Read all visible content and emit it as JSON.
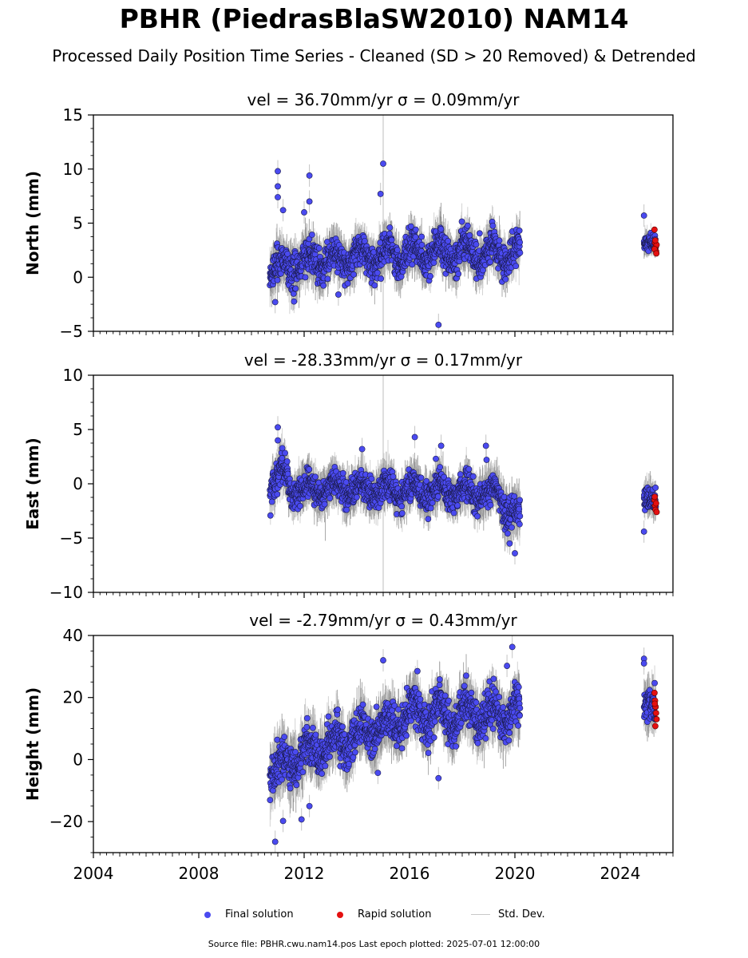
{
  "page": {
    "title": "PBHR (PiedrasBlaSW2010) NAM14",
    "subtitle": "Processed Daily Position Time Series - Cleaned (SD > 20 Removed) & Detrended",
    "source": "Source file: PBHR.cwu.nam14.pos  Last epoch plotted: 2025-07-01 12:00:00"
  },
  "legend": {
    "final_label": "Final solution",
    "rapid_label": "Rapid solution",
    "std_label": "Std. Dev."
  },
  "colors": {
    "final": "#4a4af0",
    "rapid": "#e41010",
    "std": "#b4b4b4",
    "outline": "#1a1a4a"
  },
  "chart_data": [
    {
      "type": "scatter",
      "title": "vel = 36.70mm/yr   σ = 0.09mm/yr",
      "ylabel": "North (mm)",
      "xlim": [
        2004,
        2026
      ],
      "ylim": [
        -5,
        15
      ],
      "yticks": [
        -5,
        0,
        5,
        10,
        15
      ],
      "xticks": [
        2004,
        2008,
        2012,
        2016,
        2020,
        2024
      ],
      "show_xtick_labels": false,
      "final_segments": [
        {
          "x_start": 2010.7,
          "x_end": 2013.0,
          "y_start": 0.8,
          "y_end": 1.6,
          "spread": 1.4,
          "amp": 0.8
        },
        {
          "x_start": 2013.0,
          "x_end": 2016.5,
          "y_start": 1.6,
          "y_end": 2.3,
          "spread": 1.3,
          "amp": 0.8
        },
        {
          "x_start": 2016.5,
          "x_end": 2020.2,
          "y_start": 2.3,
          "y_end": 2.2,
          "spread": 1.3,
          "amp": 0.9
        },
        {
          "x_start": 2024.9,
          "x_end": 2025.35,
          "y_start": 3.0,
          "y_end": 3.0,
          "spread": 0.7,
          "amp": 0.2
        }
      ],
      "final_outliers": [
        {
          "x": 2011.0,
          "y": 9.8
        },
        {
          "x": 2011.0,
          "y": 8.4
        },
        {
          "x": 2011.0,
          "y": 7.4
        },
        {
          "x": 2012.2,
          "y": 9.4
        },
        {
          "x": 2012.2,
          "y": 7.0
        },
        {
          "x": 2015.0,
          "y": 10.5
        },
        {
          "x": 2014.9,
          "y": 7.7
        },
        {
          "x": 2017.1,
          "y": -4.4
        },
        {
          "x": 2012.0,
          "y": 6.0
        },
        {
          "x": 2011.2,
          "y": 6.2
        },
        {
          "x": 2010.9,
          "y": -2.3
        },
        {
          "x": 2013.3,
          "y": -1.6
        },
        {
          "x": 2024.9,
          "y": 5.7
        }
      ],
      "rapid_points": [
        {
          "x": 2025.3,
          "y": 4.4
        },
        {
          "x": 2025.32,
          "y": 3.2
        },
        {
          "x": 2025.34,
          "y": 2.8
        },
        {
          "x": 2025.36,
          "y": 2.4
        },
        {
          "x": 2025.38,
          "y": 3.0
        },
        {
          "x": 2025.3,
          "y": 2.6
        },
        {
          "x": 2025.33,
          "y": 3.4
        },
        {
          "x": 2025.37,
          "y": 2.2
        }
      ],
      "spike": {
        "x": 2015.0,
        "y_low": -5,
        "y_high": 15
      }
    },
    {
      "type": "scatter",
      "title": "vel = -28.33mm/yr   σ = 0.17mm/yr",
      "ylabel": "East (mm)",
      "xlim": [
        2004,
        2026
      ],
      "ylim": [
        -10,
        10
      ],
      "yticks": [
        -10,
        -5,
        0,
        5,
        10
      ],
      "xticks": [
        2004,
        2008,
        2012,
        2016,
        2020,
        2024
      ],
      "show_xtick_labels": false,
      "final_segments": [
        {
          "x_start": 2010.7,
          "x_end": 2011.4,
          "y_start": 0.0,
          "y_end": 0.8,
          "spread": 1.3,
          "amp": 0.9
        },
        {
          "x_start": 2011.4,
          "x_end": 2019.4,
          "y_start": -0.4,
          "y_end": -0.8,
          "spread": 1.2,
          "amp": 0.7
        },
        {
          "x_start": 2019.4,
          "x_end": 2020.2,
          "y_start": -1.5,
          "y_end": -3.5,
          "spread": 1.4,
          "amp": 0.8
        },
        {
          "x_start": 2024.9,
          "x_end": 2025.35,
          "y_start": -1.3,
          "y_end": -1.6,
          "spread": 0.9,
          "amp": 0.2
        }
      ],
      "final_outliers": [
        {
          "x": 2011.0,
          "y": 5.2
        },
        {
          "x": 2011.0,
          "y": 4.0
        },
        {
          "x": 2014.2,
          "y": 3.2
        },
        {
          "x": 2016.2,
          "y": 4.3
        },
        {
          "x": 2017.2,
          "y": 3.5
        },
        {
          "x": 2018.9,
          "y": 3.5
        },
        {
          "x": 2017.0,
          "y": 2.3
        },
        {
          "x": 2020.0,
          "y": -6.4
        },
        {
          "x": 2019.8,
          "y": -5.5
        },
        {
          "x": 2024.9,
          "y": -4.4
        }
      ],
      "rapid_points": [
        {
          "x": 2025.3,
          "y": -1.5
        },
        {
          "x": 2025.32,
          "y": -2.0
        },
        {
          "x": 2025.34,
          "y": -2.4
        },
        {
          "x": 2025.36,
          "y": -1.8
        },
        {
          "x": 2025.38,
          "y": -2.6
        },
        {
          "x": 2025.31,
          "y": -1.2
        }
      ],
      "spike": {
        "x": 2015.0,
        "y_low": -10,
        "y_high": 10
      }
    },
    {
      "type": "scatter",
      "title": "vel = -2.79mm/yr   σ = 0.43mm/yr",
      "ylabel": "Height (mm)",
      "xlim": [
        2004,
        2026
      ],
      "ylim": [
        -30,
        40
      ],
      "yticks": [
        -20,
        0,
        20,
        40
      ],
      "xticks": [
        2004,
        2008,
        2012,
        2016,
        2020,
        2024
      ],
      "show_xtick_labels": true,
      "final_segments": [
        {
          "x_start": 2010.7,
          "x_end": 2012.5,
          "y_start": -5.0,
          "y_end": 4.0,
          "spread": 6.0,
          "amp": 3.0
        },
        {
          "x_start": 2012.5,
          "x_end": 2015.5,
          "y_start": 3.0,
          "y_end": 12.0,
          "spread": 5.5,
          "amp": 3.0
        },
        {
          "x_start": 2015.5,
          "x_end": 2020.2,
          "y_start": 14.0,
          "y_end": 15.0,
          "spread": 5.5,
          "amp": 4.0
        },
        {
          "x_start": 2024.9,
          "x_end": 2025.35,
          "y_start": 18.0,
          "y_end": 17.0,
          "spread": 5.0,
          "amp": 1.0
        }
      ],
      "final_outliers": [
        {
          "x": 2010.9,
          "y": -26.5
        },
        {
          "x": 2011.2,
          "y": -19.8
        },
        {
          "x": 2011.9,
          "y": -19.3
        },
        {
          "x": 2012.2,
          "y": -15.0
        },
        {
          "x": 2015.0,
          "y": 32.0
        },
        {
          "x": 2019.9,
          "y": 36.3
        },
        {
          "x": 2019.7,
          "y": 30.2
        },
        {
          "x": 2017.1,
          "y": -6.0
        },
        {
          "x": 2014.8,
          "y": -4.3
        },
        {
          "x": 2024.9,
          "y": 32.5
        },
        {
          "x": 2024.9,
          "y": 31.0
        },
        {
          "x": 2016.3,
          "y": 28.5
        }
      ],
      "rapid_points": [
        {
          "x": 2025.3,
          "y": 21.5
        },
        {
          "x": 2025.32,
          "y": 19.0
        },
        {
          "x": 2025.34,
          "y": 17.0
        },
        {
          "x": 2025.36,
          "y": 15.0
        },
        {
          "x": 2025.38,
          "y": 13.0
        },
        {
          "x": 2025.33,
          "y": 10.8
        },
        {
          "x": 2025.31,
          "y": 18.0
        }
      ],
      "spike": null
    }
  ]
}
